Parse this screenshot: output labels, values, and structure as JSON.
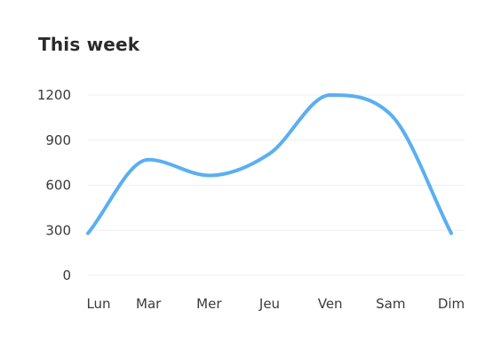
{
  "title": "This week",
  "chart_data": {
    "type": "line",
    "categories": [
      "Lun",
      "Mar",
      "Mer",
      "Jeu",
      "Ven",
      "Sam",
      "Dim"
    ],
    "series": [
      {
        "values": [
          280,
          770,
          665,
          810,
          1200,
          1070,
          280
        ]
      }
    ],
    "yticks": [
      0,
      300,
      600,
      900,
      1200
    ],
    "ylim": [
      0,
      1200
    ],
    "grid": true,
    "legend": "none",
    "color": "#5aaff2"
  }
}
